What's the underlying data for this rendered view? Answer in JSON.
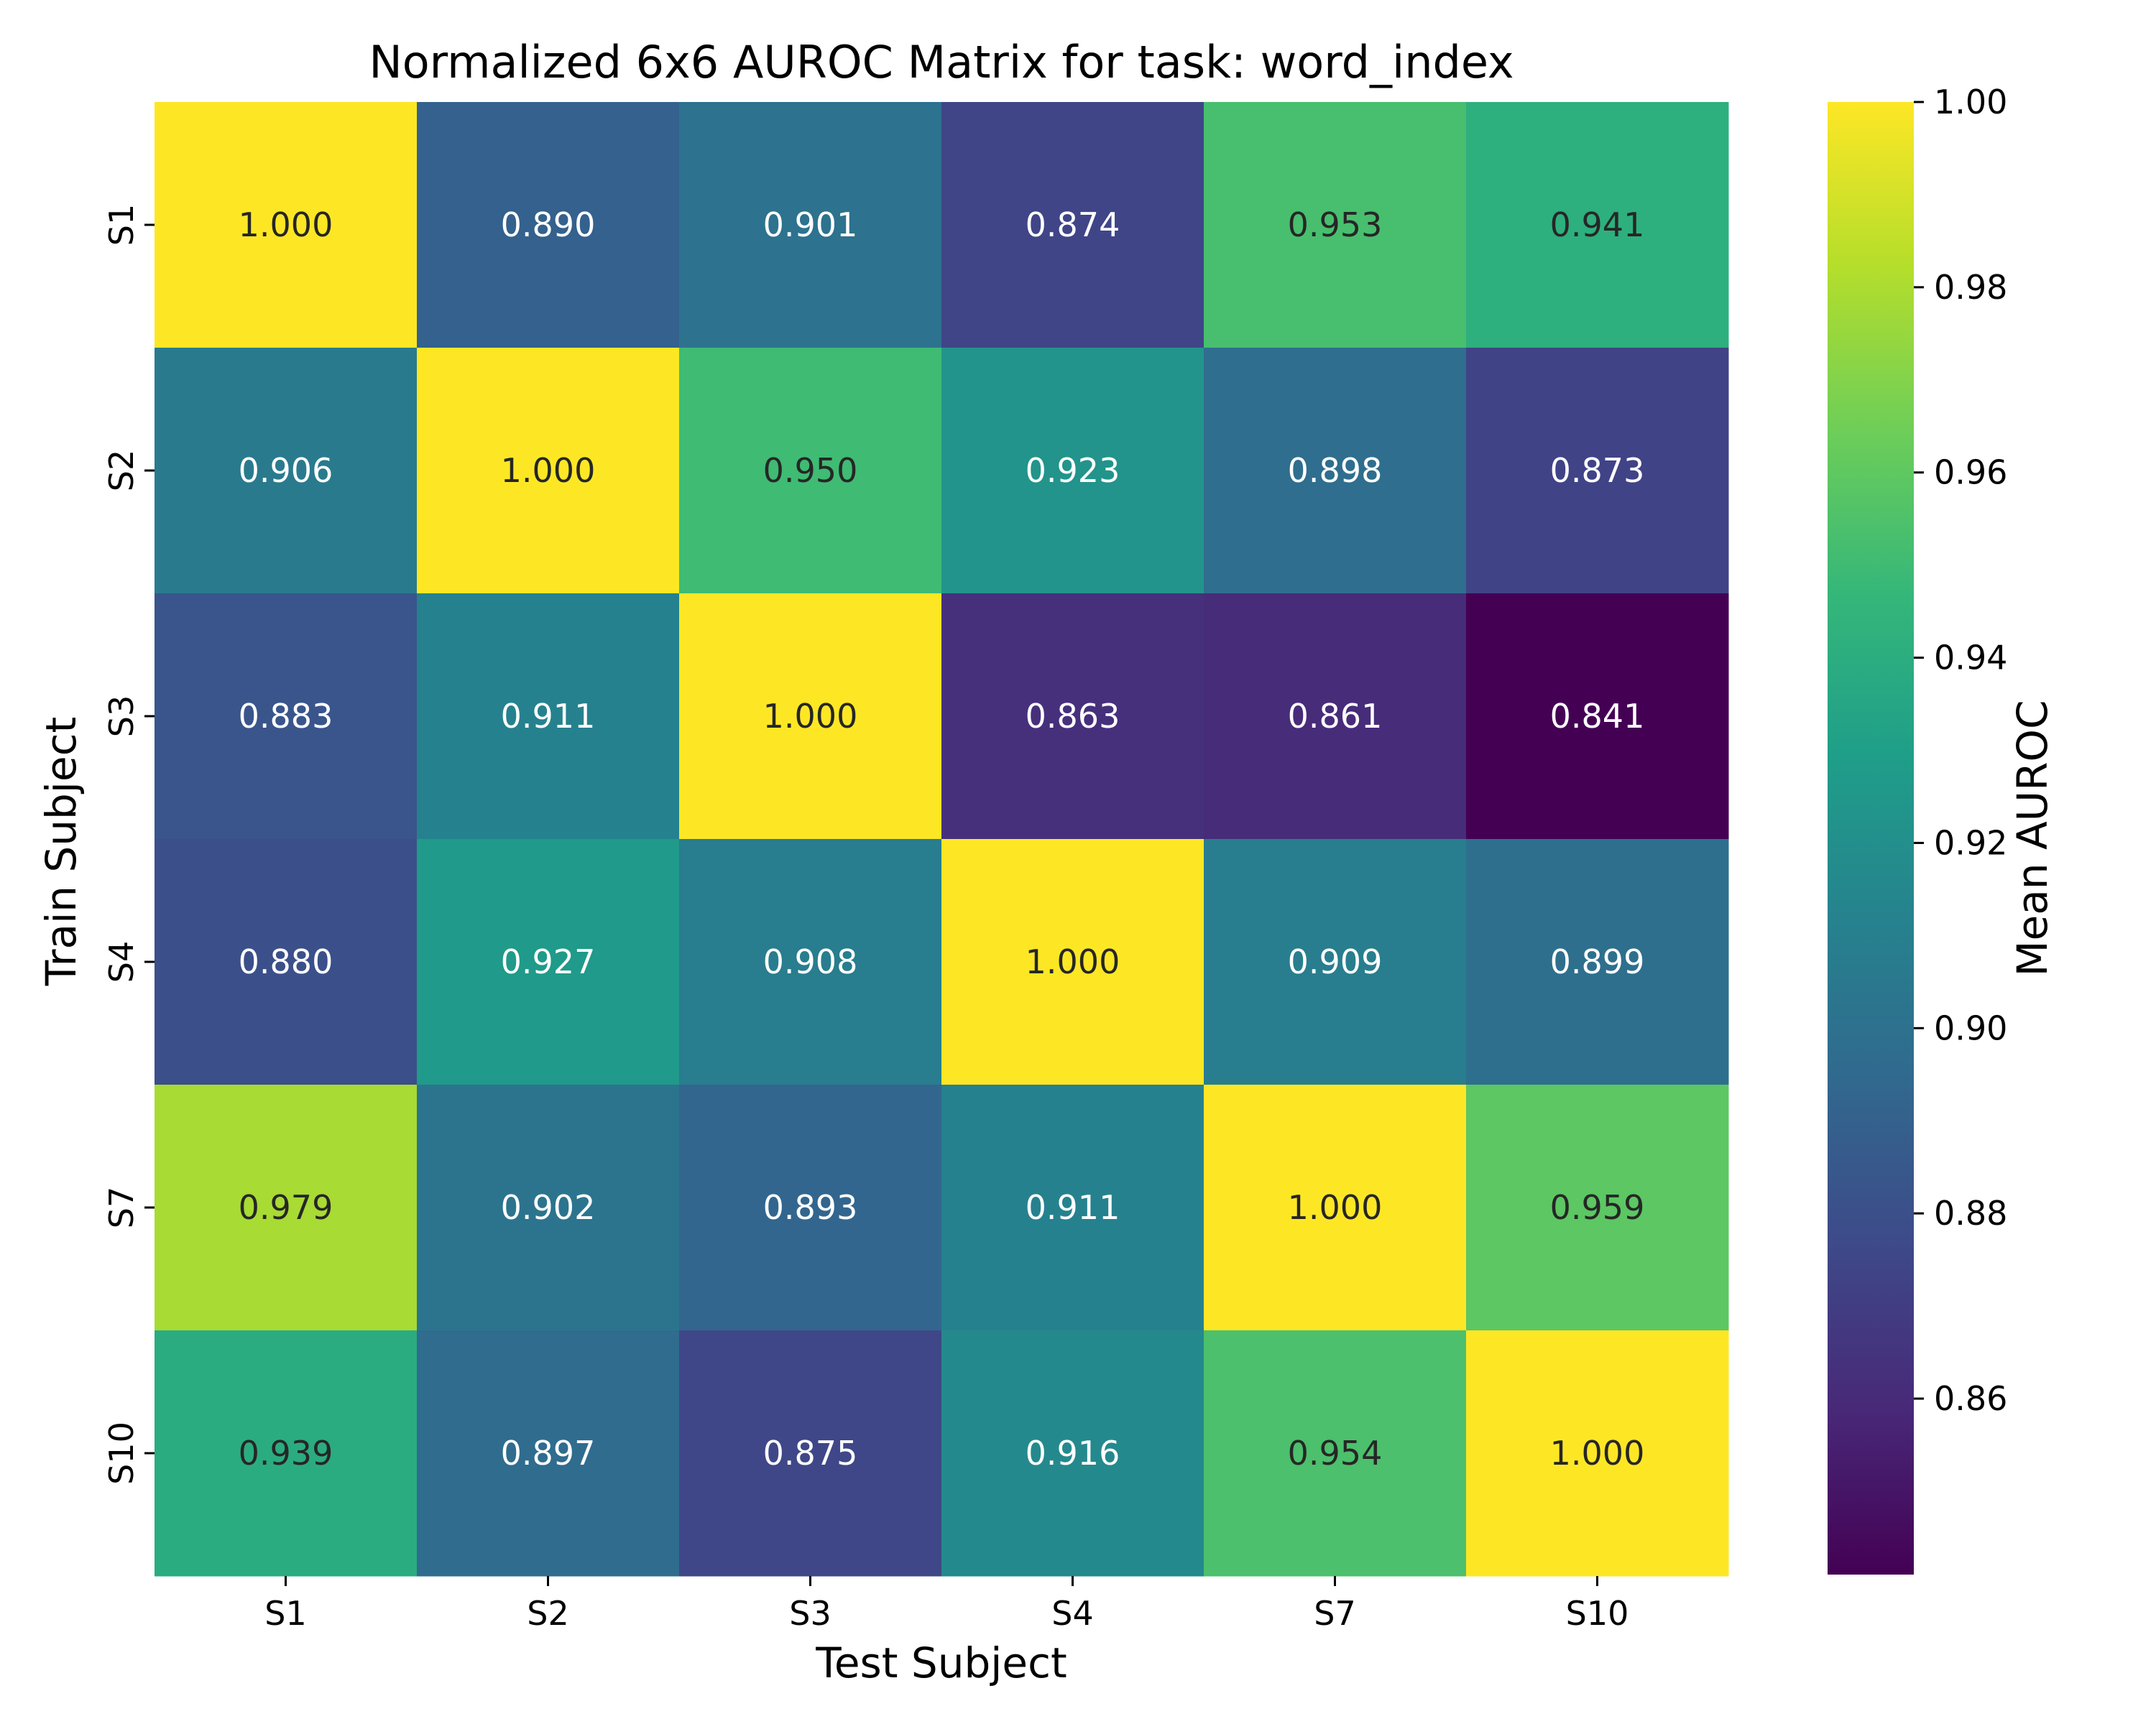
{
  "chart_data": {
    "type": "heatmap",
    "title": "Normalized 6x6 AUROC Matrix for task: word_index",
    "xlabel": "Test Subject",
    "ylabel": "Train Subject",
    "x_categories": [
      "S1",
      "S2",
      "S3",
      "S4",
      "S7",
      "S10"
    ],
    "y_categories": [
      "S1",
      "S2",
      "S3",
      "S4",
      "S7",
      "S10"
    ],
    "values": [
      [
        1.0,
        0.89,
        0.901,
        0.874,
        0.953,
        0.941
      ],
      [
        0.906,
        1.0,
        0.95,
        0.923,
        0.898,
        0.873
      ],
      [
        0.883,
        0.911,
        1.0,
        0.863,
        0.861,
        0.841
      ],
      [
        0.88,
        0.927,
        0.908,
        1.0,
        0.909,
        0.899
      ],
      [
        0.979,
        0.902,
        0.893,
        0.911,
        1.0,
        0.959
      ],
      [
        0.939,
        0.897,
        0.875,
        0.916,
        0.954,
        1.0
      ]
    ],
    "cell_labels": [
      [
        "1.000",
        "0.890",
        "0.901",
        "0.874",
        "0.953",
        "0.941"
      ],
      [
        "0.906",
        "1.000",
        "0.950",
        "0.923",
        "0.898",
        "0.873"
      ],
      [
        "0.883",
        "0.911",
        "1.000",
        "0.863",
        "0.861",
        "0.841"
      ],
      [
        "0.880",
        "0.927",
        "0.908",
        "1.000",
        "0.909",
        "0.899"
      ],
      [
        "0.979",
        "0.902",
        "0.893",
        "0.911",
        "1.000",
        "0.959"
      ],
      [
        "0.939",
        "0.897",
        "0.875",
        "0.916",
        "0.954",
        "1.000"
      ]
    ],
    "colorbar": {
      "label": "Mean AUROC",
      "vmin": 0.841,
      "vmax": 1.0,
      "ticks": [
        0.86,
        0.88,
        0.9,
        0.92,
        0.94,
        0.96,
        0.98,
        1.0
      ],
      "tick_labels": [
        "0.86",
        "0.88",
        "0.90",
        "0.92",
        "0.94",
        "0.96",
        "0.98",
        "1.00"
      ],
      "colormap": "viridis"
    },
    "grid": false
  },
  "colors": {
    "viridis_stops": [
      "#440154",
      "#482878",
      "#3e4989",
      "#31688e",
      "#26828e",
      "#1f9e89",
      "#35b779",
      "#6ece58",
      "#b5de2b",
      "#fde725"
    ],
    "text_dark": "#262626",
    "text_light": "#ffffff",
    "axis": "#000000"
  }
}
